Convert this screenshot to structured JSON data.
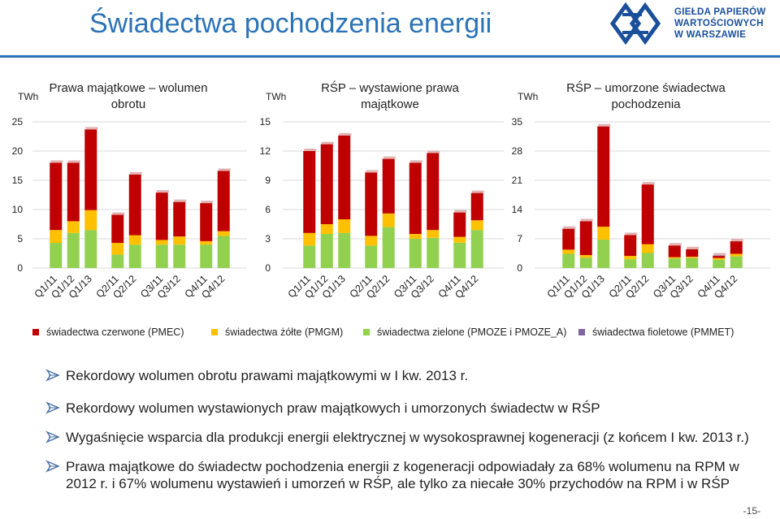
{
  "page": {
    "title": "Świadectwa pochodzenia energii",
    "page_number": "-15-"
  },
  "logo": {
    "lines": [
      "GIEŁDA PAPIERÓW",
      "WARTOŚCIOWYCH",
      "W WARSZAWIE"
    ]
  },
  "legend": [
    {
      "label": "świadectwa czerwone (PMEC)",
      "color": "#c00000"
    },
    {
      "label": "świadectwa żółte (PMGM)",
      "color": "#ffc000"
    },
    {
      "label": "świadectwa zielone (PMOZE i PMOZE_A)",
      "color": "#92d050"
    },
    {
      "label": "świadectwa fioletowe (PMMET)",
      "color": "#8064a2"
    }
  ],
  "bullets": [
    {
      "text": "Rekordowy wolumen obrotu prawami majątkowymi w I kw. 2013 r."
    },
    {
      "text": "Rekordowy wolumen wystawionych praw majątkowych i umorzonych świadectw w RŚP"
    },
    {
      "text": "Wygaśnięcie wsparcia dla produkcji energii elektrycznej w wysokosprawnej kogeneracji (z końcem I kw. 2013 r.)"
    },
    {
      "text": "Prawa majątkowe do świadectw pochodzenia energii z kogeneracji odpowiadały za 68% wolumenu na RPM w 2012 r. i 67% wolumenu wystawień i umorzeń w RŚP, ale tylko za niecałe 30% przychodów na RPM i w RŚP"
    }
  ],
  "chart_data": [
    {
      "type": "bar",
      "stacked": true,
      "title": "Prawa majątkowe – wolumen obrotu",
      "ylabel": "TWh",
      "ylim": [
        0,
        25
      ],
      "yticks": [
        0,
        5,
        10,
        15,
        20,
        25
      ],
      "categories": [
        "Q1/11",
        "Q1/12",
        "Q1/13",
        "Q2/11",
        "Q2/12",
        "Q3/11",
        "Q3/12",
        "Q4/11",
        "Q4/12"
      ],
      "groups": [
        3,
        2,
        2,
        2
      ],
      "series": [
        {
          "name": "świadectwa zielone (PMOZE i PMOZE_A)",
          "values": [
            4.3,
            6.0,
            6.5,
            2.3,
            4.0,
            4.0,
            4.0,
            4.0,
            5.5
          ]
        },
        {
          "name": "świadectwa żółte (PMGM)",
          "values": [
            2.2,
            2.0,
            3.4,
            2.0,
            1.6,
            0.8,
            1.4,
            0.6,
            0.8
          ]
        },
        {
          "name": "świadectwa czerwone (PMEC)",
          "values": [
            11.5,
            10.0,
            13.8,
            4.8,
            10.4,
            8.1,
            5.9,
            6.5,
            10.3
          ]
        }
      ]
    },
    {
      "type": "bar",
      "stacked": true,
      "title": "RŚP – wystawione prawa majątkowe",
      "ylabel": "TWh",
      "ylim": [
        0,
        15
      ],
      "yticks": [
        0,
        3,
        6,
        9,
        12,
        15
      ],
      "categories": [
        "Q1/11",
        "Q1/12",
        "Q1/13",
        "Q2/11",
        "Q2/12",
        "Q3/11",
        "Q3/12",
        "Q4/11",
        "Q4/12"
      ],
      "groups": [
        3,
        2,
        2,
        2
      ],
      "series": [
        {
          "name": "świadectwa zielone (PMOZE i PMOZE_A)",
          "values": [
            2.3,
            3.5,
            3.6,
            2.3,
            4.2,
            3.0,
            3.1,
            2.6,
            3.9
          ]
        },
        {
          "name": "świadectwa żółte (PMGM)",
          "values": [
            1.3,
            1.0,
            1.4,
            1.0,
            1.4,
            0.5,
            0.8,
            0.6,
            1.0
          ]
        },
        {
          "name": "świadectwa czerwone (PMEC)",
          "values": [
            8.4,
            8.2,
            8.6,
            6.5,
            5.6,
            7.3,
            7.9,
            2.5,
            2.8
          ]
        }
      ]
    },
    {
      "type": "bar",
      "stacked": true,
      "title": "RŚP – umorzone świadectwa pochodzenia",
      "ylabel": "TWh",
      "ylim": [
        0,
        35
      ],
      "yticks": [
        0,
        7,
        14,
        21,
        28,
        35
      ],
      "categories": [
        "Q1/11",
        "Q1/12",
        "Q1/13",
        "Q2/11",
        "Q2/12",
        "Q3/11",
        "Q3/12",
        "Q4/11",
        "Q4/12"
      ],
      "groups": [
        3,
        2,
        2,
        2
      ],
      "series": [
        {
          "name": "świadectwa zielone (PMOZE i PMOZE_A)",
          "values": [
            3.4,
            2.5,
            6.8,
            2.1,
            3.6,
            2.3,
            2.4,
            2.0,
            2.8
          ]
        },
        {
          "name": "świadectwa żółte (PMGM)",
          "values": [
            1.0,
            0.6,
            3.1,
            0.8,
            2.1,
            0.3,
            0.3,
            0.4,
            0.6
          ]
        },
        {
          "name": "świadectwa czerwone (PMEC)",
          "values": [
            5.0,
            8.1,
            24.0,
            5.0,
            14.3,
            2.8,
            1.8,
            0.5,
            3.0
          ]
        },
        {
          "name": "świadectwa fioletowe (PMMET)",
          "values": [
            0,
            0,
            0,
            0,
            0,
            0,
            0,
            0.1,
            0
          ]
        }
      ]
    }
  ]
}
